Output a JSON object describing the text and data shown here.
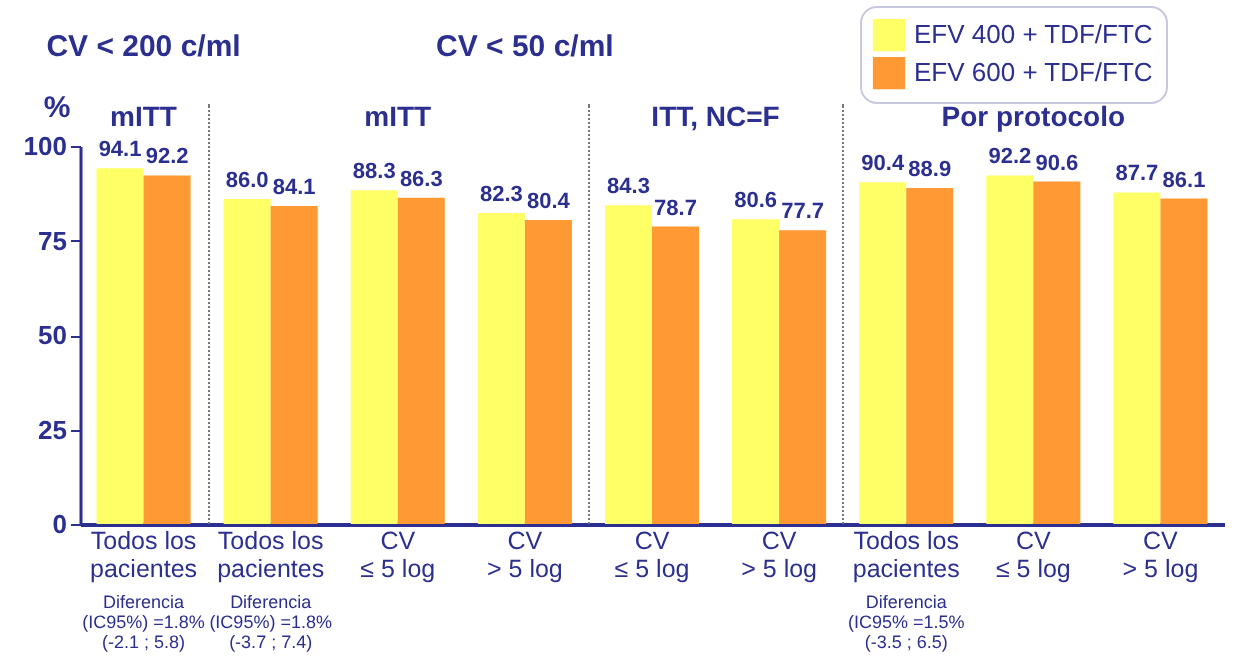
{
  "chart_data": {
    "type": "bar",
    "ylabel": "%",
    "categories": [
      "Todos los pacientes",
      "Todos los pacientes",
      "CV ≤ 5 log",
      "CV > 5 log",
      "CV ≤ 5 log",
      "CV > 5 log",
      "Todos los pacientes",
      "CV ≤ 5 log",
      "CV > 5 log"
    ],
    "series": [
      {
        "name": "EFV 400 + TDF/FTC",
        "color": "#ffff66",
        "values": [
          94.1,
          86.0,
          88.3,
          82.3,
          84.3,
          80.6,
          90.4,
          92.2,
          87.7
        ],
        "value_labels": [
          "94.1",
          "86.0",
          "88.3",
          "82.3",
          "84.3",
          "80.6",
          "90.4",
          "92.2",
          "87.7"
        ]
      },
      {
        "name": "EFV 600 + TDF/FTC",
        "color": "#ff9933",
        "values": [
          92.2,
          84.1,
          86.3,
          80.4,
          78.7,
          77.7,
          88.9,
          90.6,
          86.1
        ],
        "value_labels": [
          "92.2",
          "84.1",
          "86.3",
          "80.4",
          "78.7",
          "77.7",
          "88.9",
          "90.6",
          "86.1"
        ]
      }
    ],
    "ylim": [
      0,
      100
    ],
    "yticks": [
      0,
      25,
      50,
      75,
      100
    ],
    "grid": false,
    "legend": "top right",
    "annotations": [
      "CV < 200 c/ml",
      "CV < 50 c/ml",
      "mITT",
      "mITT",
      "ITT, NC=F",
      "Por protocolo",
      "Diferencia (IC95%) =1.8% (-2.1 ; 5.8)",
      "Diferencia (IC95%) =1.8% (-3.7 ; 7.4)",
      "Diferencia (IC95% =1.5% (-3.5 ; 6.5)"
    ]
  }
}
